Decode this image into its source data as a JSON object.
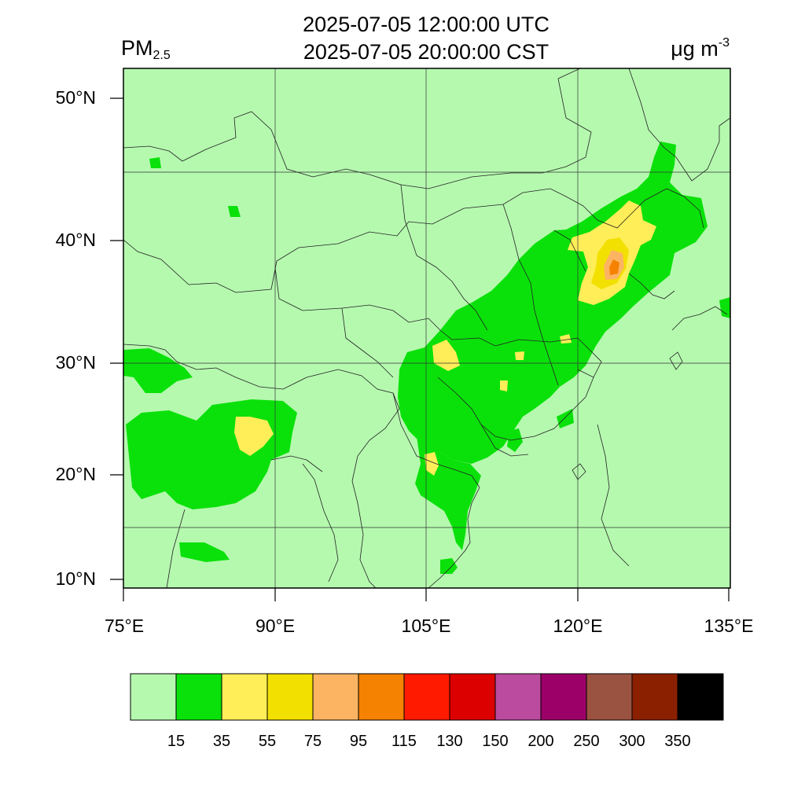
{
  "title": {
    "line1": "2025-07-05 12:00:00 UTC",
    "line2": "2025-07-05 20:00:00 CST"
  },
  "variable": {
    "name": "PM",
    "subscript": "2.5"
  },
  "units": {
    "base": "μg m",
    "exponent": "-3"
  },
  "axes": {
    "lat_labels": [
      "50°N",
      "40°N",
      "30°N",
      "20°N",
      "10°N"
    ],
    "lon_labels": [
      "75°E",
      "90°E",
      "105°E",
      "120°E",
      "135°E"
    ]
  },
  "colorbar": {
    "levels": [
      "15",
      "35",
      "55",
      "75",
      "95",
      "115",
      "130",
      "150",
      "200",
      "250",
      "300",
      "350"
    ],
    "colors": [
      "#b5f9af",
      "#0ae10a",
      "#ffee58",
      "#f2e000",
      "#fdb462",
      "#f58200",
      "#ff1a00",
      "#dc0000",
      "#bb4b9e",
      "#9c0068",
      "#9b5341",
      "#8b2000",
      "#000000"
    ]
  },
  "map": {
    "background_color": "#b5f9af",
    "grid": true
  }
}
